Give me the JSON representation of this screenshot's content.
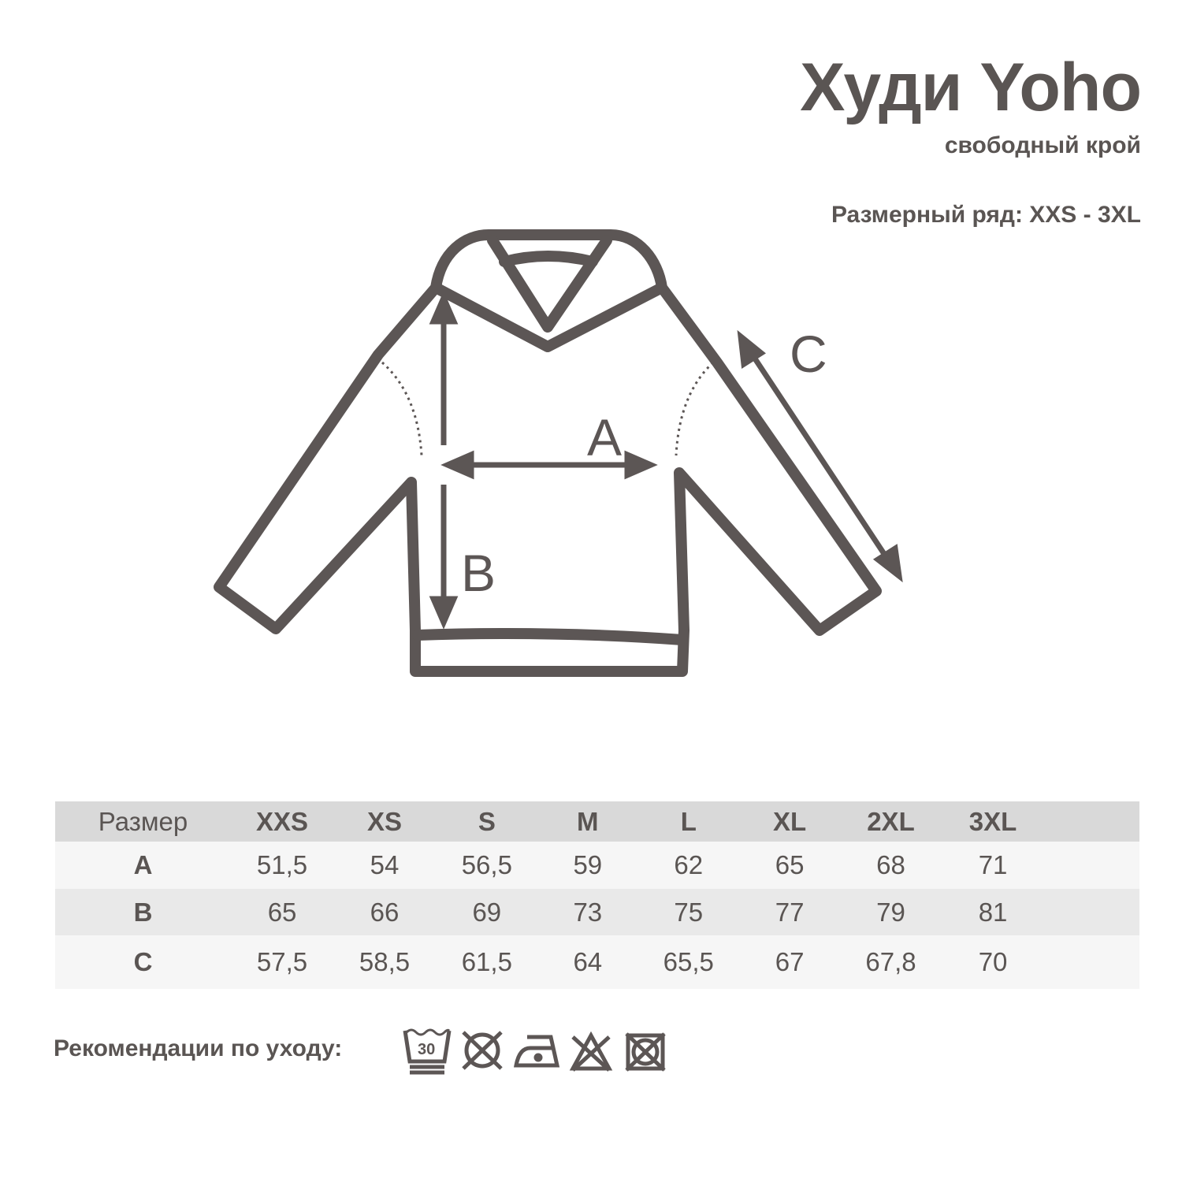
{
  "header": {
    "title": "Худи Yoho",
    "subtitle": "свободный крой",
    "size_range": "Размерный ряд: XXS - 3XL"
  },
  "diagram": {
    "labels": {
      "a": "A",
      "b": "B",
      "c": "C"
    },
    "line_color": "#5c5655"
  },
  "table": {
    "header_label": "Размер",
    "sizes": [
      "XXS",
      "XS",
      "S",
      "M",
      "L",
      "XL",
      "2XL",
      "3XL"
    ],
    "rows": [
      {
        "label": "A",
        "values": [
          "51,5",
          "54",
          "56,5",
          "59",
          "62",
          "65",
          "68",
          "71"
        ]
      },
      {
        "label": "B",
        "values": [
          "65",
          "66",
          "69",
          "73",
          "75",
          "77",
          "79",
          "81"
        ]
      },
      {
        "label": "C",
        "values": [
          "57,5",
          "58,5",
          "61,5",
          "64",
          "65,5",
          "67",
          "67,8",
          "70"
        ]
      }
    ]
  },
  "care": {
    "label": "Рекомендации по уходу:",
    "wash_temp": "30",
    "icons": [
      "wash-30-gentle-icon",
      "no-tumble-dry-icon",
      "iron-low-icon",
      "no-bleach-icon",
      "no-dryclean-icon"
    ]
  }
}
